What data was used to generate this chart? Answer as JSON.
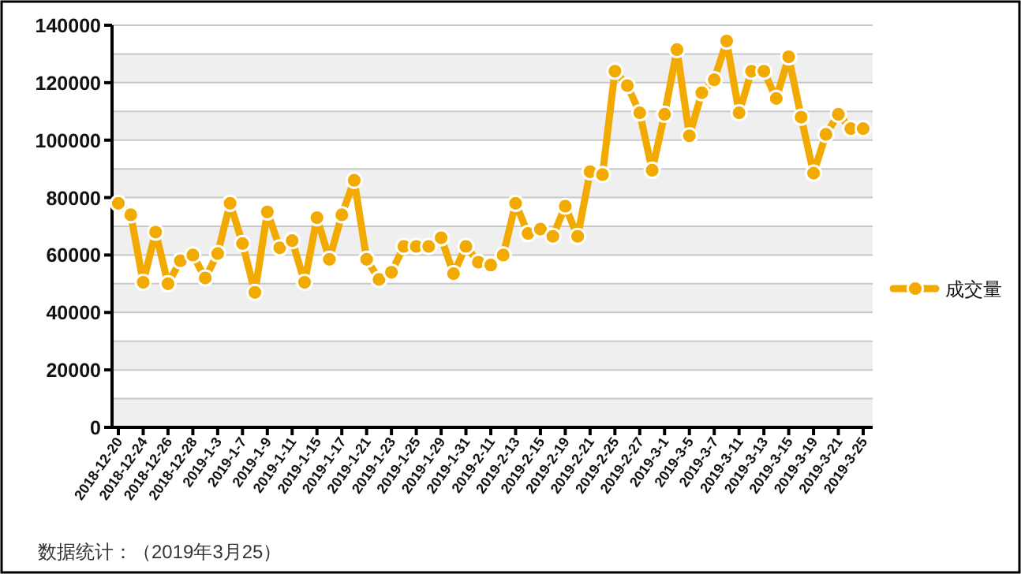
{
  "chart_data": {
    "type": "line",
    "categories": [
      "2018-12-20",
      null,
      "2018-12-24",
      null,
      "2018-12-26",
      null,
      "2018-12-28",
      null,
      "2019-1-3",
      null,
      "2019-1-7",
      null,
      "2019-1-9",
      null,
      "2019-1-11",
      null,
      "2019-1-15",
      null,
      "2019-1-17",
      null,
      "2019-1-21",
      null,
      "2019-1-23",
      null,
      "2019-1-25",
      null,
      "2019-1-29",
      null,
      "2019-1-31",
      null,
      "2019-2-11",
      null,
      "2019-2-13",
      null,
      "2019-2-15",
      null,
      "2019-2-19",
      null,
      "2019-2-21",
      null,
      "2019-2-25",
      null,
      "2019-2-27",
      null,
      "2019-3-1",
      null,
      "2019-3-5",
      null,
      "2019-3-7",
      null,
      "2019-3-11",
      null,
      "2019-3-13",
      null,
      "2019-3-15",
      null,
      "2019-3-19",
      null,
      "2019-3-21",
      null,
      "2019-3-25"
    ],
    "series": [
      {
        "name": "成交量",
        "color": "#f2a900",
        "values": [
          78000,
          74000,
          50500,
          68000,
          50000,
          58000,
          60000,
          52000,
          60500,
          78000,
          64000,
          47000,
          75000,
          62500,
          65000,
          50500,
          73000,
          58500,
          74000,
          86000,
          58500,
          51500,
          54000,
          63000,
          63000,
          63000,
          66000,
          53500,
          63000,
          57500,
          56500,
          60000,
          78000,
          67500,
          69000,
          66500,
          77000,
          66500,
          89000,
          88000,
          124000,
          119000,
          109500,
          89500,
          109000,
          131500,
          101500,
          116500,
          121000,
          134500,
          109500,
          124000,
          124000,
          114500,
          129000,
          108000,
          88500,
          102000,
          109000,
          104000,
          104000
        ]
      }
    ],
    "ylim": [
      0,
      140000
    ],
    "yticks": [
      0,
      {
        "value": 10000,
        "label": null
      },
      20000,
      {
        "value": 30000,
        "label": null
      },
      40000,
      {
        "value": 50000,
        "label": null
      },
      60000,
      {
        "value": 70000,
        "label": null
      },
      80000,
      {
        "value": 90000,
        "label": null
      },
      100000,
      {
        "value": 110000,
        "label": null
      },
      120000,
      {
        "value": 130000,
        "label": null
      },
      140000
    ],
    "grid": "y",
    "legend": "right",
    "marker": "circle",
    "line_style": "solid",
    "annotations": [
      "数据统计：（2019年3月25）"
    ]
  }
}
